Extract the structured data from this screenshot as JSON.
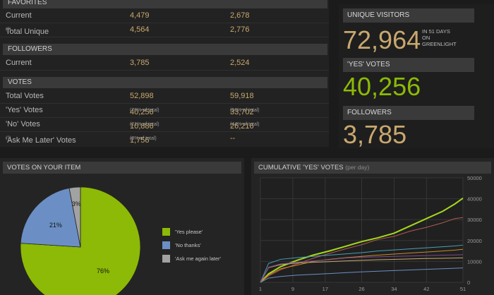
{
  "table": {
    "favorites": {
      "title": "FAVORITES",
      "rows": [
        {
          "label": "Current",
          "v1": "4,479",
          "v2": "2,678"
        },
        {
          "label": "Total Unique",
          "info": "(?)",
          "v1": "4,564",
          "v2": "2,776"
        }
      ]
    },
    "followers": {
      "title": "FOLLOWERS",
      "rows": [
        {
          "label": "Current",
          "v1": "3,785",
          "v2": "2,524"
        }
      ]
    },
    "votes": {
      "title": "VOTES",
      "rows": [
        {
          "label": "Total Votes",
          "v1": "52,898",
          "v2": "59,918"
        },
        {
          "label": "'Yes' Votes",
          "v1": "40,256",
          "v1_sub": "(76% of total)",
          "v2": "33,702",
          "v2_sub": "(56% of total)"
        },
        {
          "label": "'No' Votes",
          "v1": "10,886",
          "v1_sub": "(21% of total)",
          "v2": "26,216",
          "v2_sub": "(44% of total)"
        },
        {
          "label": "'Ask Me Later' Votes",
          "info": "(?)",
          "v1": "1,756",
          "v1_sub": "(3% of total)",
          "v2": "--"
        }
      ]
    }
  },
  "stats": {
    "unique_visitors": {
      "title": "UNIQUE VISITORS",
      "value": "72,964",
      "note_line1": "IN 51 DAYS",
      "note_line2": "ON",
      "note_line3": "GREENLIGHT"
    },
    "yes_votes": {
      "title": "'YES' VOTES",
      "value": "40,256"
    },
    "followers": {
      "title": "FOLLOWERS",
      "value": "3,785"
    }
  },
  "colors": {
    "green": "#8cba06",
    "blue": "#6b8fc4",
    "gray": "#a2a2a2",
    "gold": "#c9a86e"
  },
  "pie_panel": {
    "title": "VOTES ON YOUR ITEM",
    "legend": [
      {
        "label": "'Yes please'",
        "color": "#8cba06"
      },
      {
        "label": "'No thanks'",
        "color": "#6b8fc4"
      },
      {
        "label": "'Ask me again later'",
        "color": "#a2a2a2"
      }
    ]
  },
  "line_panel": {
    "title": "CUMULATIVE 'YES' VOTES",
    "unit": "(per day)"
  },
  "chart_data": [
    {
      "type": "pie",
      "slices": [
        {
          "name": "'Yes please'",
          "value": 76,
          "label": "76%",
          "color": "#8cba06"
        },
        {
          "name": "'No thanks'",
          "value": 21,
          "label": "21%",
          "color": "#6b8fc4"
        },
        {
          "name": "'Ask me again later'",
          "value": 3,
          "label": "3%",
          "color": "#a2a2a2"
        }
      ]
    },
    {
      "type": "line",
      "title": "CUMULATIVE 'YES' VOTES",
      "x_ticks": [
        "1",
        "9",
        "17",
        "26",
        "34",
        "42",
        "51"
      ],
      "y_ticks": [
        "0",
        "10000",
        "20000",
        "30000",
        "40000",
        "50000"
      ],
      "xlim": [
        1,
        51
      ],
      "ylim": [
        0,
        50000
      ],
      "grid": true,
      "series": [
        {
          "color": "#a6d81c",
          "values": [
            [
              1,
              0
            ],
            [
              3,
              4000
            ],
            [
              6,
              7500
            ],
            [
              10,
              10500
            ],
            [
              14,
              13000
            ],
            [
              18,
              15000
            ],
            [
              22,
              17200
            ],
            [
              26,
              19500
            ],
            [
              30,
              21300
            ],
            [
              34,
              23500
            ],
            [
              38,
              27000
            ],
            [
              42,
              30500
            ],
            [
              46,
              34000
            ],
            [
              49,
              37500
            ],
            [
              51,
              40256
            ]
          ]
        },
        {
          "color": "#b05a52",
          "values": [
            [
              1,
              0
            ],
            [
              3,
              3000
            ],
            [
              6,
              6000
            ],
            [
              10,
              8800
            ],
            [
              14,
              11500
            ],
            [
              18,
              13800
            ],
            [
              22,
              16000
            ],
            [
              26,
              18000
            ],
            [
              30,
              20500
            ],
            [
              34,
              22000
            ],
            [
              38,
              24500
            ],
            [
              42,
              26300
            ],
            [
              46,
              28500
            ],
            [
              49,
              30500
            ],
            [
              51,
              31000
            ]
          ]
        },
        {
          "color": "#4a9fb5",
          "values": [
            [
              1,
              0
            ],
            [
              3,
              9000
            ],
            [
              6,
              11000
            ],
            [
              10,
              11800
            ],
            [
              14,
              12400
            ],
            [
              18,
              13000
            ],
            [
              22,
              13600
            ],
            [
              26,
              14200
            ],
            [
              30,
              15000
            ],
            [
              34,
              15500
            ],
            [
              38,
              16000
            ],
            [
              42,
              16500
            ],
            [
              46,
              17000
            ],
            [
              49,
              17400
            ],
            [
              51,
              17800
            ]
          ]
        },
        {
          "color": "#c88a2a",
          "values": [
            [
              1,
              0
            ],
            [
              3,
              3500
            ],
            [
              6,
              6500
            ],
            [
              10,
              8200
            ],
            [
              14,
              10000
            ],
            [
              18,
              11000
            ],
            [
              22,
              11800
            ],
            [
              26,
              12400
            ],
            [
              30,
              13000
            ],
            [
              34,
              13500
            ],
            [
              38,
              14000
            ],
            [
              42,
              14500
            ],
            [
              46,
              15000
            ],
            [
              49,
              15400
            ],
            [
              51,
              15800
            ]
          ]
        },
        {
          "color": "#c9a86e",
          "values": [
            [
              1,
              0
            ],
            [
              3,
              7000
            ],
            [
              6,
              8500
            ],
            [
              10,
              9200
            ],
            [
              14,
              9600
            ],
            [
              18,
              9900
            ],
            [
              22,
              10200
            ],
            [
              26,
              10500
            ],
            [
              30,
              10800
            ],
            [
              34,
              11000
            ],
            [
              38,
              11200
            ],
            [
              42,
              11400
            ],
            [
              46,
              11500
            ],
            [
              49,
              11600
            ],
            [
              51,
              11700
            ]
          ]
        },
        {
          "color": "#6b8fc4",
          "values": [
            [
              1,
              0
            ],
            [
              3,
              2000
            ],
            [
              6,
              2800
            ],
            [
              10,
              3400
            ],
            [
              14,
              3800
            ],
            [
              18,
              4200
            ],
            [
              22,
              4600
            ],
            [
              26,
              5000
            ],
            [
              30,
              5300
            ],
            [
              34,
              5600
            ],
            [
              38,
              5900
            ],
            [
              42,
              6200
            ],
            [
              46,
              6500
            ],
            [
              49,
              6700
            ],
            [
              51,
              6900
            ]
          ]
        },
        {
          "color": "#7a4a8c",
          "values": [
            [
              1,
              0
            ],
            [
              3,
              7200
            ],
            [
              6,
              8800
            ],
            [
              10,
              9600
            ],
            [
              14,
              10200
            ],
            [
              18,
              10800
            ],
            [
              22,
              11600
            ],
            [
              26,
              12000
            ],
            [
              30,
              12200
            ],
            [
              34,
              12400
            ],
            [
              38,
              12600
            ],
            [
              42,
              12800
            ],
            [
              46,
              13000
            ],
            [
              49,
              13100
            ],
            [
              51,
              13200
            ]
          ]
        }
      ]
    }
  ]
}
